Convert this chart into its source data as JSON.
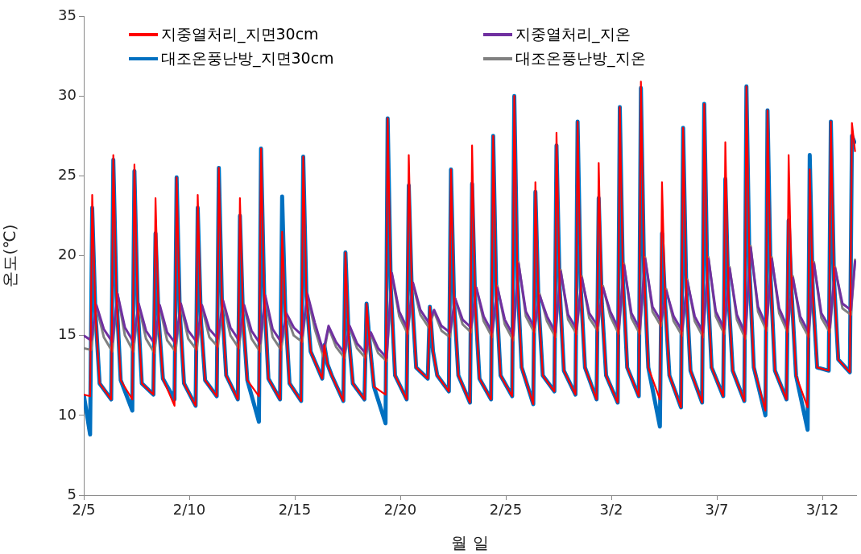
{
  "chart_data": {
    "type": "line",
    "xlabel": "월 일",
    "ylabel": "온도(℃)",
    "xlim": [
      "--02-05",
      "--03-13T14:24"
    ],
    "ylim": [
      5,
      35
    ],
    "xticks": [
      {
        "value": "--02-05",
        "label": "2/5"
      },
      {
        "value": "--02-10",
        "label": "2/10"
      },
      {
        "value": "--02-15",
        "label": "2/15"
      },
      {
        "value": "--02-20",
        "label": "2/20"
      },
      {
        "value": "--02-25",
        "label": "2/25"
      },
      {
        "value": "--03-02",
        "label": "3/2"
      },
      {
        "value": "--03-07",
        "label": "3/7"
      },
      {
        "value": "--03-12",
        "label": "3/12"
      }
    ],
    "yticks": [
      5,
      10,
      15,
      20,
      25,
      30,
      35
    ],
    "grid": false,
    "legend": "top",
    "marker": "none",
    "line_style": "solid",
    "x": [
      "--02-05",
      "--02-05T07:12",
      "--02-05T09:36",
      "--02-05T13:12",
      "--02-05T18:00",
      "--02-06T07:12",
      "--02-06T09:36",
      "--02-06T13:12",
      "--02-06T18:00",
      "--02-07T07:12",
      "--02-07T09:36",
      "--02-07T13:12",
      "--02-07T18:00",
      "--02-08T07:12",
      "--02-08T09:36",
      "--02-08T13:12",
      "--02-08T18:00",
      "--02-09T07:12",
      "--02-09T09:36",
      "--02-09T13:12",
      "--02-09T18:00",
      "--02-10T07:12",
      "--02-10T09:36",
      "--02-10T13:12",
      "--02-10T18:00",
      "--02-11T07:12",
      "--02-11T09:36",
      "--02-11T13:12",
      "--02-11T18:00",
      "--02-12T07:12",
      "--02-12T09:36",
      "--02-12T13:12",
      "--02-12T18:00",
      "--02-13T07:12",
      "--02-13T09:36",
      "--02-13T13:12",
      "--02-13T18:00",
      "--02-14T07:12",
      "--02-14T09:36",
      "--02-14T13:12",
      "--02-14T18:00",
      "--02-15T07:12",
      "--02-15T09:36",
      "--02-15T13:12",
      "--02-15T18:00",
      "--02-16T07:12",
      "--02-16T09:36",
      "--02-16T13:12",
      "--02-16T18:00",
      "--02-17T07:12",
      "--02-17T09:36",
      "--02-17T13:12",
      "--02-17T18:00",
      "--02-18T07:12",
      "--02-18T09:36",
      "--02-18T13:12",
      "--02-18T18:00",
      "--02-19T07:12",
      "--02-19T09:36",
      "--02-19T13:12",
      "--02-19T18:00",
      "--02-20T07:12",
      "--02-20T09:36",
      "--02-20T13:12",
      "--02-20T18:00",
      "--02-21T07:12",
      "--02-21T09:36",
      "--02-21T13:12",
      "--02-21T18:00",
      "--02-22T07:12",
      "--02-22T09:36",
      "--02-22T13:12",
      "--02-22T18:00",
      "--02-23T07:12",
      "--02-23T09:36",
      "--02-23T13:12",
      "--02-23T18:00",
      "--02-24T07:12",
      "--02-24T09:36",
      "--02-24T13:12",
      "--02-24T18:00",
      "--02-25T07:12",
      "--02-25T09:36",
      "--02-25T13:12",
      "--02-25T18:00",
      "--02-26T07:12",
      "--02-26T09:36",
      "--02-26T13:12",
      "--02-26T18:00",
      "--02-27T07:12",
      "--02-27T09:36",
      "--02-27T13:12",
      "--02-27T18:00",
      "--02-28T07:12",
      "--02-28T09:36",
      "--02-28T13:12",
      "--02-28T18:00",
      "--03-01T07:12",
      "--03-01T09:36",
      "--03-01T13:12",
      "--03-01T18:00",
      "--03-02T07:12",
      "--03-02T09:36",
      "--03-02T13:12",
      "--03-02T18:00",
      "--03-03T07:12",
      "--03-03T09:36",
      "--03-03T13:12",
      "--03-03T18:00",
      "--03-04T07:12",
      "--03-04T09:36",
      "--03-04T13:12",
      "--03-04T18:00",
      "--03-05T07:12",
      "--03-05T09:36",
      "--03-05T13:12",
      "--03-05T18:00",
      "--03-06T07:12",
      "--03-06T09:36",
      "--03-06T13:12",
      "--03-06T18:00",
      "--03-07T07:12",
      "--03-07T09:36",
      "--03-07T13:12",
      "--03-07T18:00",
      "--03-08T07:12",
      "--03-08T09:36",
      "--03-08T13:12",
      "--03-08T18:00",
      "--03-09T07:12",
      "--03-09T09:36",
      "--03-09T13:12",
      "--03-09T18:00",
      "--03-10T07:12",
      "--03-10T09:36",
      "--03-10T13:12",
      "--03-10T18:00",
      "--03-11T07:12",
      "--03-11T09:36",
      "--03-11T13:12",
      "--03-11T18:00",
      "--03-12T07:12",
      "--03-12T09:36",
      "--03-12T13:12",
      "--03-12T18:00",
      "--03-13T07:12",
      "--03-13T09:36",
      "--03-13T13:12"
    ],
    "series": [
      {
        "name": "지중열처리_지면30cm",
        "color": "#ff0000",
        "values": [
          11.3,
          11.2,
          23.8,
          16.5,
          12.0,
          11.0,
          26.3,
          17.5,
          12.2,
          11.0,
          25.7,
          17.0,
          12.0,
          11.3,
          23.6,
          16.0,
          12.3,
          10.6,
          24.9,
          16.5,
          12.0,
          10.6,
          23.8,
          16.0,
          12.2,
          11.2,
          25.5,
          17.0,
          12.5,
          11.0,
          23.6,
          16.0,
          12.2,
          11.2,
          26.7,
          17.5,
          12.3,
          11.0,
          21.5,
          16.5,
          12.0,
          10.9,
          26.2,
          17.5,
          14.0,
          12.3,
          14.4,
          13.2,
          12.5,
          10.9,
          20.2,
          15.0,
          12.0,
          11.0,
          17.0,
          14.5,
          11.8,
          11.3,
          28.6,
          18.0,
          12.5,
          11.0,
          26.3,
          17.5,
          13.0,
          12.3,
          16.8,
          14.0,
          12.5,
          11.5,
          25.4,
          17.0,
          12.5,
          10.8,
          26.9,
          17.0,
          12.3,
          11.0,
          27.5,
          17.5,
          12.5,
          11.2,
          30.0,
          18.5,
          13.0,
          10.7,
          24.6,
          17.0,
          12.5,
          11.5,
          27.7,
          18.0,
          12.8,
          11.3,
          28.4,
          18.0,
          13.0,
          11.0,
          25.8,
          17.0,
          12.5,
          10.8,
          29.3,
          18.5,
          13.0,
          11.2,
          30.9,
          19.0,
          13.0,
          11.0,
          24.6,
          17.0,
          12.5,
          10.5,
          28.0,
          18.0,
          12.8,
          10.8,
          29.5,
          18.5,
          13.0,
          11.2,
          27.1,
          17.5,
          12.8,
          10.9,
          30.6,
          19.0,
          13.0,
          10.3,
          29.1,
          18.5,
          12.8,
          11.0,
          26.3,
          17.5,
          12.5,
          10.5,
          25.4,
          17.5,
          13.0,
          12.8,
          28.4,
          18.5,
          13.5,
          12.7,
          28.3,
          26.5
        ]
      },
      {
        "name": "지중열처리_지온",
        "color": "#7030a0",
        "x": [
          "--02-05",
          "--02-05T08:24",
          "--02-05T14:24",
          "--02-05T22:48",
          "--02-06T08:24",
          "--02-06T14:24",
          "--02-06T22:48",
          "--02-07T08:24",
          "--02-07T14:24",
          "--02-07T22:48",
          "--02-08T08:24",
          "--02-08T14:24",
          "--02-08T22:48",
          "--02-09T08:24",
          "--02-09T14:24",
          "--02-09T22:48",
          "--02-10T08:24",
          "--02-10T14:24",
          "--02-10T22:48",
          "--02-11T08:24",
          "--02-11T14:24",
          "--02-11T22:48",
          "--02-12T08:24",
          "--02-12T14:24",
          "--02-12T22:48",
          "--02-13T08:24",
          "--02-13T14:24",
          "--02-13T22:48",
          "--02-14T08:24",
          "--02-14T14:24",
          "--02-14T22:48",
          "--02-15T08:24",
          "--02-15T14:24",
          "--02-15T22:48",
          "--02-16T08:24",
          "--02-16T14:24",
          "--02-16T22:48",
          "--02-17T08:24",
          "--02-17T14:24",
          "--02-17T22:48",
          "--02-18T08:24",
          "--02-18T14:24",
          "--02-18T22:48",
          "--02-19T08:24",
          "--02-19T14:24",
          "--02-19T22:48",
          "--02-20T08:24",
          "--02-20T14:24",
          "--02-20T22:48",
          "--02-21T08:24",
          "--02-21T14:24",
          "--02-21T22:48",
          "--02-22T08:24",
          "--02-22T14:24",
          "--02-22T22:48",
          "--02-23T08:24",
          "--02-23T14:24",
          "--02-23T22:48",
          "--02-24T08:24",
          "--02-24T14:24",
          "--02-24T22:48",
          "--02-25T08:24",
          "--02-25T14:24",
          "--02-25T22:48",
          "--02-26T08:24",
          "--02-26T14:24",
          "--02-26T22:48",
          "--02-27T08:24",
          "--02-27T14:24",
          "--02-27T22:48",
          "--02-28T08:24",
          "--02-28T14:24",
          "--02-28T22:48",
          "--03-01T08:24",
          "--03-01T14:24",
          "--03-01T22:48",
          "--03-02T08:24",
          "--03-02T14:24",
          "--03-02T22:48",
          "--03-03T08:24",
          "--03-03T14:24",
          "--03-03T22:48",
          "--03-04T08:24",
          "--03-04T14:24",
          "--03-04T22:48",
          "--03-05T08:24",
          "--03-05T14:24",
          "--03-05T22:48",
          "--03-06T08:24",
          "--03-06T14:24",
          "--03-06T22:48",
          "--03-07T08:24",
          "--03-07T14:24",
          "--03-07T22:48",
          "--03-08T08:24",
          "--03-08T14:24",
          "--03-08T22:48",
          "--03-09T08:24",
          "--03-09T14:24",
          "--03-09T22:48",
          "--03-10T08:24",
          "--03-10T14:24",
          "--03-10T22:48",
          "--03-11T08:24",
          "--03-11T14:24",
          "--03-11T22:48",
          "--03-12T08:24",
          "--03-12T14:24",
          "--03-12T22:48",
          "--03-13T08:24",
          "--03-13T13:12"
        ],
        "values": [
          15.0,
          14.7,
          16.9,
          15.4,
          14.6,
          17.6,
          15.5,
          14.6,
          17.0,
          15.3,
          14.5,
          16.9,
          15.2,
          14.5,
          17.0,
          15.3,
          14.6,
          16.9,
          15.4,
          14.8,
          17.2,
          15.5,
          14.7,
          16.9,
          15.3,
          14.5,
          17.5,
          15.4,
          14.6,
          16.4,
          15.5,
          15.0,
          17.6,
          15.8,
          14.0,
          15.6,
          14.6,
          13.9,
          15.6,
          14.5,
          13.9,
          15.2,
          14.2,
          13.6,
          18.9,
          16.5,
          15.4,
          18.3,
          16.6,
          15.8,
          16.6,
          15.6,
          15.2,
          17.3,
          16.0,
          15.5,
          18.0,
          16.2,
          15.2,
          18.0,
          16.0,
          15.0,
          19.5,
          16.5,
          15.5,
          17.5,
          16.2,
          15.2,
          19.0,
          16.3,
          15.4,
          18.6,
          16.4,
          15.6,
          18.0,
          16.5,
          15.4,
          19.4,
          16.4,
          15.4,
          19.8,
          16.8,
          15.9,
          17.8,
          16.2,
          15.3,
          18.4,
          16.2,
          15.2,
          19.8,
          16.5,
          15.4,
          19.2,
          16.3,
          15.1,
          20.5,
          16.8,
          15.6,
          19.8,
          16.7,
          15.5,
          18.6,
          16.2,
          15.2,
          19.5,
          16.4,
          15.5,
          19.2,
          17.0,
          16.6,
          19.7
        ]
      },
      {
        "name": "대조온풍난방_지면30cm",
        "color": "#0070c0",
        "values": [
          11.3,
          8.8,
          23.0,
          16.5,
          12.0,
          11.0,
          26.0,
          17.5,
          12.2,
          10.3,
          25.3,
          17.0,
          12.0,
          11.3,
          21.4,
          16.0,
          12.3,
          11.0,
          24.9,
          16.5,
          12.0,
          10.6,
          23.0,
          16.0,
          12.2,
          11.2,
          25.5,
          17.0,
          12.5,
          11.0,
          22.5,
          16.0,
          12.2,
          9.6,
          26.7,
          17.5,
          12.3,
          11.0,
          23.7,
          16.5,
          12.0,
          10.9,
          26.2,
          17.5,
          14.0,
          12.3,
          14.4,
          13.2,
          12.5,
          10.9,
          20.2,
          15.0,
          12.0,
          11.0,
          17.0,
          14.5,
          11.8,
          9.5,
          28.6,
          18.0,
          12.5,
          11.0,
          24.4,
          17.5,
          13.0,
          12.3,
          16.8,
          14.0,
          12.5,
          11.5,
          25.4,
          17.0,
          12.5,
          10.8,
          24.5,
          17.0,
          12.3,
          11.0,
          27.5,
          17.5,
          12.5,
          11.2,
          30.0,
          18.5,
          13.0,
          10.7,
          24.0,
          17.0,
          12.5,
          11.5,
          26.9,
          18.0,
          12.8,
          11.3,
          28.4,
          18.0,
          13.0,
          11.0,
          23.6,
          17.0,
          12.5,
          10.8,
          29.3,
          18.5,
          13.0,
          11.2,
          30.5,
          19.0,
          13.0,
          9.3,
          21.4,
          17.0,
          12.5,
          10.5,
          28.0,
          18.0,
          12.8,
          10.8,
          29.5,
          18.5,
          13.0,
          11.2,
          24.8,
          17.5,
          12.8,
          10.9,
          30.6,
          19.0,
          13.0,
          10.0,
          29.1,
          18.5,
          12.8,
          11.0,
          22.2,
          17.5,
          12.5,
          9.1,
          26.3,
          17.5,
          13.0,
          12.8,
          28.4,
          18.5,
          13.5,
          12.7,
          27.5,
          27.0
        ]
      },
      {
        "name": "대조온풍난방_지온",
        "color": "#808080",
        "x": [
          "--02-05",
          "--02-05T08:24",
          "--02-05T14:24",
          "--02-05T22:48",
          "--02-06T08:24",
          "--02-06T14:24",
          "--02-06T22:48",
          "--02-07T08:24",
          "--02-07T14:24",
          "--02-07T22:48",
          "--02-08T08:24",
          "--02-08T14:24",
          "--02-08T22:48",
          "--02-09T08:24",
          "--02-09T14:24",
          "--02-09T22:48",
          "--02-10T08:24",
          "--02-10T14:24",
          "--02-10T22:48",
          "--02-11T08:24",
          "--02-11T14:24",
          "--02-11T22:48",
          "--02-12T08:24",
          "--02-12T14:24",
          "--02-12T22:48",
          "--02-13T08:24",
          "--02-13T14:24",
          "--02-13T22:48",
          "--02-14T08:24",
          "--02-14T14:24",
          "--02-14T22:48",
          "--02-15T08:24",
          "--02-15T14:24",
          "--02-15T22:48",
          "--02-16T08:24",
          "--02-16T14:24",
          "--02-16T22:48",
          "--02-17T08:24",
          "--02-17T14:24",
          "--02-17T22:48",
          "--02-18T08:24",
          "--02-18T14:24",
          "--02-18T22:48",
          "--02-19T08:24",
          "--02-19T14:24",
          "--02-19T22:48",
          "--02-20T08:24",
          "--02-20T14:24",
          "--02-20T22:48",
          "--02-21T08:24",
          "--02-21T14:24",
          "--02-21T22:48",
          "--02-22T08:24",
          "--02-22T14:24",
          "--02-22T22:48",
          "--02-23T08:24",
          "--02-23T14:24",
          "--02-23T22:48",
          "--02-24T08:24",
          "--02-24T14:24",
          "--02-24T22:48",
          "--02-25T08:24",
          "--02-25T14:24",
          "--02-25T22:48",
          "--02-26T08:24",
          "--02-26T14:24",
          "--02-26T22:48",
          "--02-27T08:24",
          "--02-27T14:24",
          "--02-27T22:48",
          "--02-28T08:24",
          "--02-28T14:24",
          "--02-28T22:48",
          "--03-01T08:24",
          "--03-01T14:24",
          "--03-01T22:48",
          "--03-02T08:24",
          "--03-02T14:24",
          "--03-02T22:48",
          "--03-03T08:24",
          "--03-03T14:24",
          "--03-03T22:48",
          "--03-04T08:24",
          "--03-04T14:24",
          "--03-04T22:48",
          "--03-05T08:24",
          "--03-05T14:24",
          "--03-05T22:48",
          "--03-06T08:24",
          "--03-06T14:24",
          "--03-06T22:48",
          "--03-07T08:24",
          "--03-07T14:24",
          "--03-07T22:48",
          "--03-08T08:24",
          "--03-08T14:24",
          "--03-08T22:48",
          "--03-09T08:24",
          "--03-09T14:24",
          "--03-09T22:48",
          "--03-10T08:24",
          "--03-10T14:24",
          "--03-10T22:48",
          "--03-11T08:24",
          "--03-11T14:24",
          "--03-11T22:48",
          "--03-12T08:24",
          "--03-12T14:24",
          "--03-12T22:48",
          "--03-13T08:24",
          "--03-13T13:12"
        ],
        "values": [
          14.2,
          14.1,
          16.8,
          14.9,
          14.0,
          17.6,
          15.0,
          14.0,
          16.9,
          14.8,
          13.9,
          16.8,
          14.7,
          14.0,
          16.9,
          14.8,
          14.1,
          16.8,
          14.9,
          14.3,
          17.1,
          15.0,
          14.2,
          16.8,
          14.8,
          14.0,
          17.4,
          14.9,
          14.1,
          16.3,
          15.0,
          14.6,
          17.5,
          15.4,
          13.7,
          15.5,
          14.3,
          13.6,
          15.5,
          14.2,
          13.6,
          15.1,
          13.9,
          13.4,
          18.8,
          16.2,
          15.1,
          18.2,
          16.3,
          15.5,
          16.5,
          15.3,
          14.9,
          17.3,
          15.7,
          15.2,
          18.0,
          15.9,
          14.9,
          18.1,
          15.7,
          14.7,
          19.6,
          16.2,
          15.2,
          17.6,
          15.9,
          14.9,
          19.1,
          16.0,
          15.1,
          18.7,
          16.1,
          15.3,
          18.1,
          16.2,
          15.1,
          19.5,
          16.1,
          15.1,
          19.9,
          16.5,
          15.6,
          17.9,
          15.9,
          15.0,
          18.5,
          15.9,
          14.9,
          19.9,
          16.2,
          15.1,
          19.3,
          16.0,
          14.8,
          20.6,
          16.5,
          15.3,
          19.9,
          16.4,
          15.2,
          18.7,
          15.9,
          14.9,
          19.6,
          16.1,
          15.2,
          19.3,
          16.7,
          16.3,
          19.8
        ]
      }
    ]
  }
}
